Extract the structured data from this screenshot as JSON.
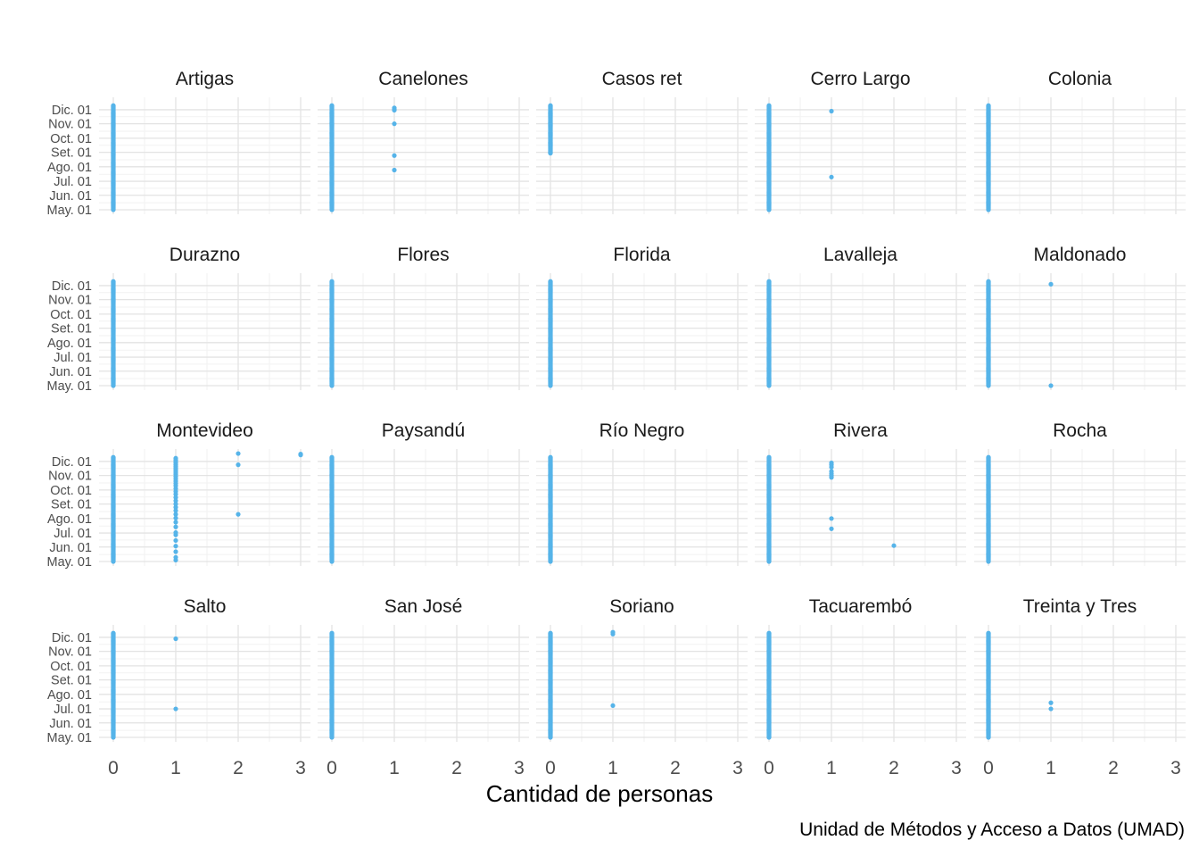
{
  "chart_data": {
    "type": "scatter",
    "xlabel": "Cantidad de personas",
    "ylabel": "",
    "caption": "Unidad de Métodos y Acceso a Datos (UMAD)",
    "xlim": [
      0,
      3
    ],
    "x_ticks": [
      0,
      1,
      2,
      3
    ],
    "y_ticks": [
      "May. 01",
      "Jun. 01",
      "Jul. 01",
      "Ago. 01",
      "Set. 01",
      "Oct. 01",
      "Nov. 01",
      "Dic. 01"
    ],
    "ylim": [
      "2020-05-01",
      "2020-12-10"
    ],
    "grid": true,
    "point_color": "#56B4E9",
    "baseline_note": "every panel shows daily points at x=0 from May. 01 through Dic. 10, except Casos ret (Set. 01 to Dic. 10)",
    "panels": [
      {
        "name": "Artigas",
        "zero_range": [
          "2020-05-01",
          "2020-12-10"
        ],
        "points": []
      },
      {
        "name": "Canelones",
        "zero_range": [
          "2020-05-01",
          "2020-12-10"
        ],
        "points": [
          {
            "x": 1,
            "date": "2020-12-05"
          },
          {
            "x": 1,
            "date": "2020-12-02"
          },
          {
            "x": 1,
            "date": "2020-11-30"
          },
          {
            "x": 1,
            "date": "2020-11-01"
          },
          {
            "x": 1,
            "date": "2020-08-25"
          },
          {
            "x": 1,
            "date": "2020-07-25"
          }
        ]
      },
      {
        "name": "Casos ret",
        "zero_range": [
          "2020-08-30",
          "2020-12-10"
        ],
        "points": []
      },
      {
        "name": "Cerro Largo",
        "zero_range": [
          "2020-05-01",
          "2020-12-10"
        ],
        "points": [
          {
            "x": 1,
            "date": "2020-11-28"
          },
          {
            "x": 1,
            "date": "2020-07-10"
          }
        ]
      },
      {
        "name": "Colonia",
        "zero_range": [
          "2020-05-01",
          "2020-12-10"
        ],
        "points": []
      },
      {
        "name": "Durazno",
        "zero_range": [
          "2020-05-01",
          "2020-12-10"
        ],
        "points": []
      },
      {
        "name": "Flores",
        "zero_range": [
          "2020-05-01",
          "2020-12-10"
        ],
        "points": []
      },
      {
        "name": "Florida",
        "zero_range": [
          "2020-05-01",
          "2020-12-10"
        ],
        "points": []
      },
      {
        "name": "Lavalleja",
        "zero_range": [
          "2020-05-01",
          "2020-12-10"
        ],
        "points": []
      },
      {
        "name": "Maldonado",
        "zero_range": [
          "2020-05-01",
          "2020-12-10"
        ],
        "points": [
          {
            "x": 1,
            "date": "2020-12-04"
          },
          {
            "x": 1,
            "date": "2020-05-01"
          }
        ]
      },
      {
        "name": "Montevideo",
        "zero_range": [
          "2020-05-01",
          "2020-12-10"
        ],
        "points": [
          {
            "x": 1,
            "date": "2020-12-08"
          },
          {
            "x": 1,
            "date": "2020-12-04"
          },
          {
            "x": 1,
            "date": "2020-12-01"
          },
          {
            "x": 1,
            "date": "2020-11-28"
          },
          {
            "x": 1,
            "date": "2020-11-24"
          },
          {
            "x": 1,
            "date": "2020-11-20"
          },
          {
            "x": 1,
            "date": "2020-11-16"
          },
          {
            "x": 1,
            "date": "2020-11-12"
          },
          {
            "x": 1,
            "date": "2020-11-08"
          },
          {
            "x": 1,
            "date": "2020-11-04"
          },
          {
            "x": 1,
            "date": "2020-10-30"
          },
          {
            "x": 1,
            "date": "2020-10-25"
          },
          {
            "x": 1,
            "date": "2020-10-20"
          },
          {
            "x": 1,
            "date": "2020-10-15"
          },
          {
            "x": 1,
            "date": "2020-10-10"
          },
          {
            "x": 1,
            "date": "2020-10-04"
          },
          {
            "x": 1,
            "date": "2020-09-28"
          },
          {
            "x": 1,
            "date": "2020-09-22"
          },
          {
            "x": 1,
            "date": "2020-09-15"
          },
          {
            "x": 1,
            "date": "2020-09-08"
          },
          {
            "x": 1,
            "date": "2020-09-01"
          },
          {
            "x": 1,
            "date": "2020-08-25"
          },
          {
            "x": 1,
            "date": "2020-08-18"
          },
          {
            "x": 1,
            "date": "2020-08-10"
          },
          {
            "x": 1,
            "date": "2020-08-02"
          },
          {
            "x": 1,
            "date": "2020-07-24"
          },
          {
            "x": 1,
            "date": "2020-07-14"
          },
          {
            "x": 1,
            "date": "2020-07-02"
          },
          {
            "x": 1,
            "date": "2020-06-27"
          },
          {
            "x": 1,
            "date": "2020-06-15"
          },
          {
            "x": 1,
            "date": "2020-06-03"
          },
          {
            "x": 1,
            "date": "2020-05-22"
          },
          {
            "x": 1,
            "date": "2020-05-10"
          },
          {
            "x": 1,
            "date": "2020-05-04"
          },
          {
            "x": 2,
            "date": "2020-12-18"
          },
          {
            "x": 2,
            "date": "2020-11-24"
          },
          {
            "x": 2,
            "date": "2020-08-10"
          },
          {
            "x": 3,
            "date": "2020-12-17"
          },
          {
            "x": 3,
            "date": "2020-12-15"
          }
        ]
      },
      {
        "name": "Paysandú",
        "zero_range": [
          "2020-05-01",
          "2020-12-10"
        ],
        "points": []
      },
      {
        "name": "Río Negro",
        "zero_range": [
          "2020-05-01",
          "2020-12-10"
        ],
        "points": []
      },
      {
        "name": "Rivera",
        "zero_range": [
          "2020-05-01",
          "2020-12-10"
        ],
        "points": [
          {
            "x": 1,
            "date": "2020-11-28"
          },
          {
            "x": 1,
            "date": "2020-11-24"
          },
          {
            "x": 1,
            "date": "2020-11-19"
          },
          {
            "x": 1,
            "date": "2020-11-10"
          },
          {
            "x": 1,
            "date": "2020-11-05"
          },
          {
            "x": 1,
            "date": "2020-11-01"
          },
          {
            "x": 1,
            "date": "2020-10-28"
          },
          {
            "x": 1,
            "date": "2020-08-01"
          },
          {
            "x": 1,
            "date": "2020-07-10"
          },
          {
            "x": 2,
            "date": "2020-06-04"
          }
        ]
      },
      {
        "name": "Rocha",
        "zero_range": [
          "2020-05-01",
          "2020-12-10"
        ],
        "points": []
      },
      {
        "name": "Salto",
        "zero_range": [
          "2020-05-01",
          "2020-12-10"
        ],
        "points": [
          {
            "x": 1,
            "date": "2020-11-28"
          },
          {
            "x": 1,
            "date": "2020-07-01"
          }
        ]
      },
      {
        "name": "San José",
        "zero_range": [
          "2020-05-01",
          "2020-12-10"
        ],
        "points": []
      },
      {
        "name": "Soriano",
        "zero_range": [
          "2020-05-01",
          "2020-12-10"
        ],
        "points": [
          {
            "x": 1,
            "date": "2020-12-12"
          },
          {
            "x": 1,
            "date": "2020-12-08"
          },
          {
            "x": 1,
            "date": "2020-07-08"
          }
        ]
      },
      {
        "name": "Tacuarembó",
        "zero_range": [
          "2020-05-01",
          "2020-12-10"
        ],
        "points": []
      },
      {
        "name": "Treinta y Tres",
        "zero_range": [
          "2020-05-01",
          "2020-12-10"
        ],
        "points": [
          {
            "x": 1,
            "date": "2020-07-14"
          },
          {
            "x": 1,
            "date": "2020-07-01"
          }
        ]
      }
    ]
  }
}
